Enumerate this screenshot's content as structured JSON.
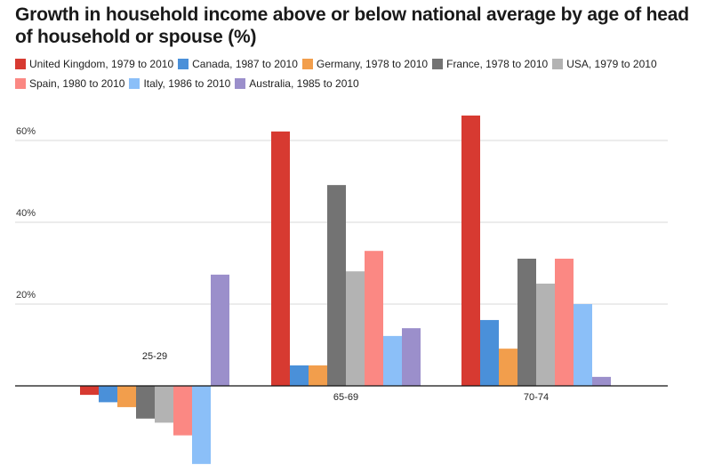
{
  "chart_data": {
    "type": "bar",
    "title": "Growth in household income above or below national average by age of head of household or spouse (%)",
    "xlabel": "",
    "ylabel": "",
    "ylim": [
      -20,
      70
    ],
    "yticks": [
      20,
      40,
      60
    ],
    "ytick_labels": [
      "20%",
      "40%",
      "60%"
    ],
    "grid": true,
    "legend_position": "top",
    "categories": [
      "25-29",
      "65-69",
      "70-74"
    ],
    "series": [
      {
        "name": "United Kingdom, 1979 to 2010",
        "color": "#d73a31",
        "values": [
          -2.2,
          62.2,
          66.1
        ]
      },
      {
        "name": "Canada, 1987 to 2010",
        "color": "#4a90d9",
        "values": [
          -4.0,
          5.0,
          16.1
        ]
      },
      {
        "name": "Germany, 1978 to 2010",
        "color": "#f29e4c",
        "values": [
          -5.2,
          5.0,
          9.1
        ]
      },
      {
        "name": "France, 1978 to 2010",
        "color": "#737373",
        "values": [
          -8.0,
          49.1,
          31.1
        ]
      },
      {
        "name": "USA, 1979 to 2010",
        "color": "#b3b3b3",
        "values": [
          -9.0,
          28.0,
          25.0
        ]
      },
      {
        "name": "Spain, 1980 to 2010",
        "color": "#fb8883",
        "values": [
          -12.1,
          33.0,
          31.1
        ]
      },
      {
        "name": "Italy, 1986 to 2010",
        "color": "#8bbff8",
        "values": [
          -19.1,
          12.2,
          20.0
        ]
      },
      {
        "name": "Australia, 1985 to 2010",
        "color": "#9b8fcb",
        "values": [
          27.2,
          14.1,
          2.2
        ]
      }
    ]
  }
}
